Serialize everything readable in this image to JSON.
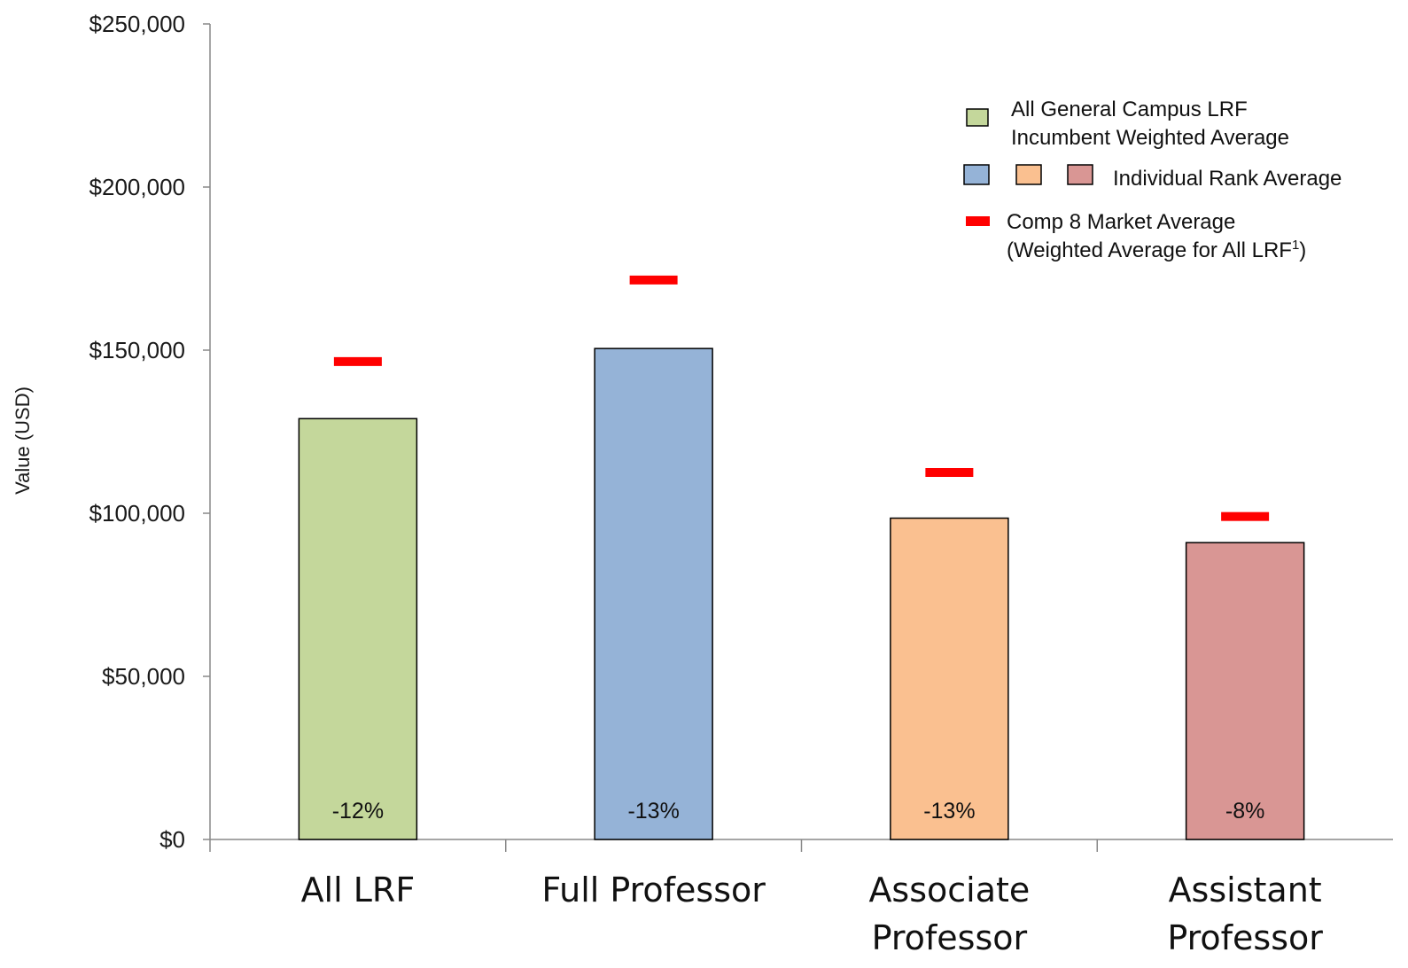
{
  "chart_data": {
    "type": "bar",
    "ylabel": "Value (USD)",
    "ylim": [
      0,
      250000
    ],
    "yticks": [
      0,
      50000,
      100000,
      150000,
      200000,
      250000
    ],
    "ytick_labels": [
      "$0",
      "$50,000",
      "$100,000",
      "$150,000",
      "$200,000",
      "$250,000"
    ],
    "categories": [
      {
        "lines": [
          "All LRF"
        ]
      },
      {
        "lines": [
          "Full Professor"
        ]
      },
      {
        "lines": [
          "Associate",
          "Professor"
        ]
      },
      {
        "lines": [
          "Assistant",
          "Professor"
        ]
      }
    ],
    "series": [
      {
        "name": "All General Campus LRF Incumbent Weighted Average / Individual Rank Average",
        "values": [
          129000,
          150500,
          98500,
          91000
        ],
        "colors": [
          "#c4d79b",
          "#95b3d7",
          "#fac090",
          "#d99694"
        ]
      },
      {
        "name": "Comp 8 Market Average (Weighted Average for All LRF1)",
        "values": [
          146500,
          171500,
          112500,
          99000
        ],
        "color": "#ff0000",
        "marker": "dash"
      }
    ],
    "data_labels": [
      "-12%",
      "-13%",
      "-13%",
      "-8%"
    ],
    "legend": {
      "placement": "top-right",
      "entries": [
        {
          "lines": [
            "All General Campus LRF",
            "Incumbent Weighted Average"
          ],
          "swatches": [
            "#c4d79b"
          ]
        },
        {
          "lines": [
            "Individual Rank Average"
          ],
          "swatches": [
            "#95b3d7",
            "#fac090",
            "#d99694"
          ]
        },
        {
          "lines": [
            "Comp 8 Market Average",
            "(Weighted Average for All LRF"
          ],
          "superscript": "1",
          "suffix": ")",
          "swatches": [
            "#ff0000"
          ],
          "marker": "dash"
        }
      ]
    }
  }
}
